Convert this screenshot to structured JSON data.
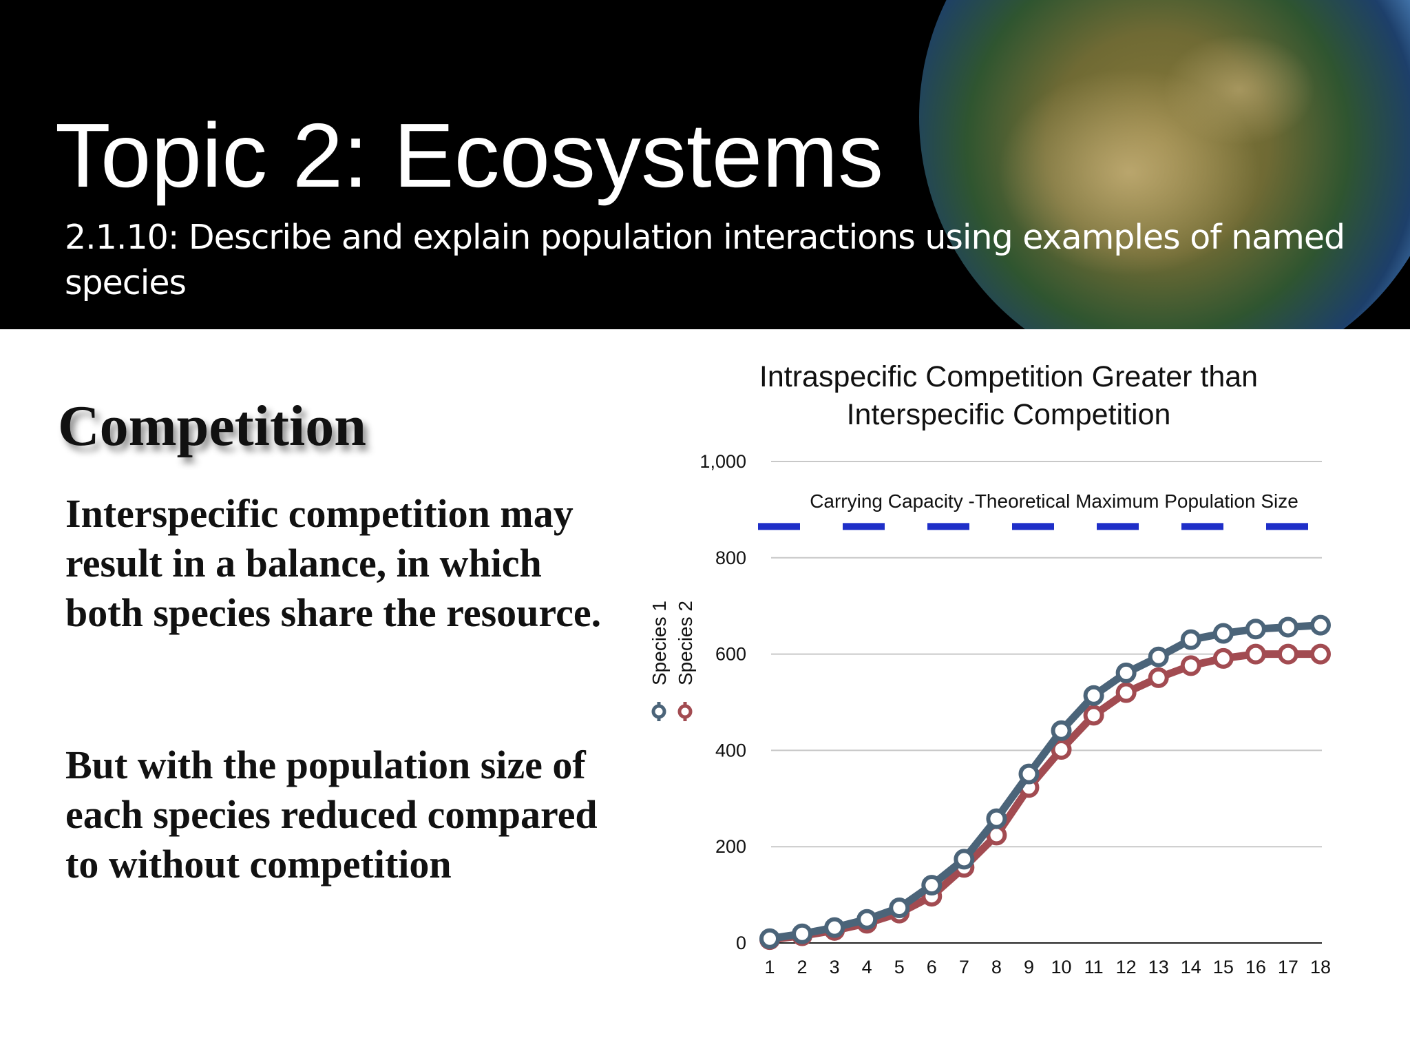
{
  "header": {
    "title": "Topic 2: Ecosystems",
    "subtitle": "2.1.10: Describe and explain population interactions using examples of named species"
  },
  "body": {
    "heading": "Competition",
    "paragraphs": [
      "Interspecific competition may result in a balance, in which both species share the resource.",
      "But with the population size of each species reduced compared to without competition"
    ]
  },
  "chart_data": {
    "type": "line",
    "title": "Intraspecific Competition Greater than Interspecific Competition",
    "categories": [
      "1",
      "2",
      "3",
      "4",
      "5",
      "6",
      "7",
      "8",
      "9",
      "10",
      "11",
      "12",
      "13",
      "14",
      "15",
      "16",
      "17",
      "18"
    ],
    "series": [
      {
        "name": "Species 1",
        "color": "#4b6479",
        "values": [
          9,
          19,
          32,
          49,
          73,
          120,
          174,
          258,
          351,
          441,
          514,
          561,
          594,
          630,
          643,
          652,
          656,
          660
        ]
      },
      {
        "name": "Species 2",
        "color": "#a24b51",
        "values": [
          7,
          15,
          26,
          41,
          62,
          97,
          157,
          224,
          323,
          402,
          473,
          520,
          551,
          576,
          591,
          600,
          600,
          600
        ]
      }
    ],
    "ylim": [
      0,
      1000
    ],
    "yticks": [
      0,
      200,
      400,
      600,
      800,
      {
        "value": 1000,
        "label": "1,000"
      }
    ],
    "grid": true,
    "carrying_capacity": {
      "label": "Carrying Capacity -Theoretical Maximum Population Size",
      "value": 865,
      "color": "#1f2fc8"
    }
  }
}
